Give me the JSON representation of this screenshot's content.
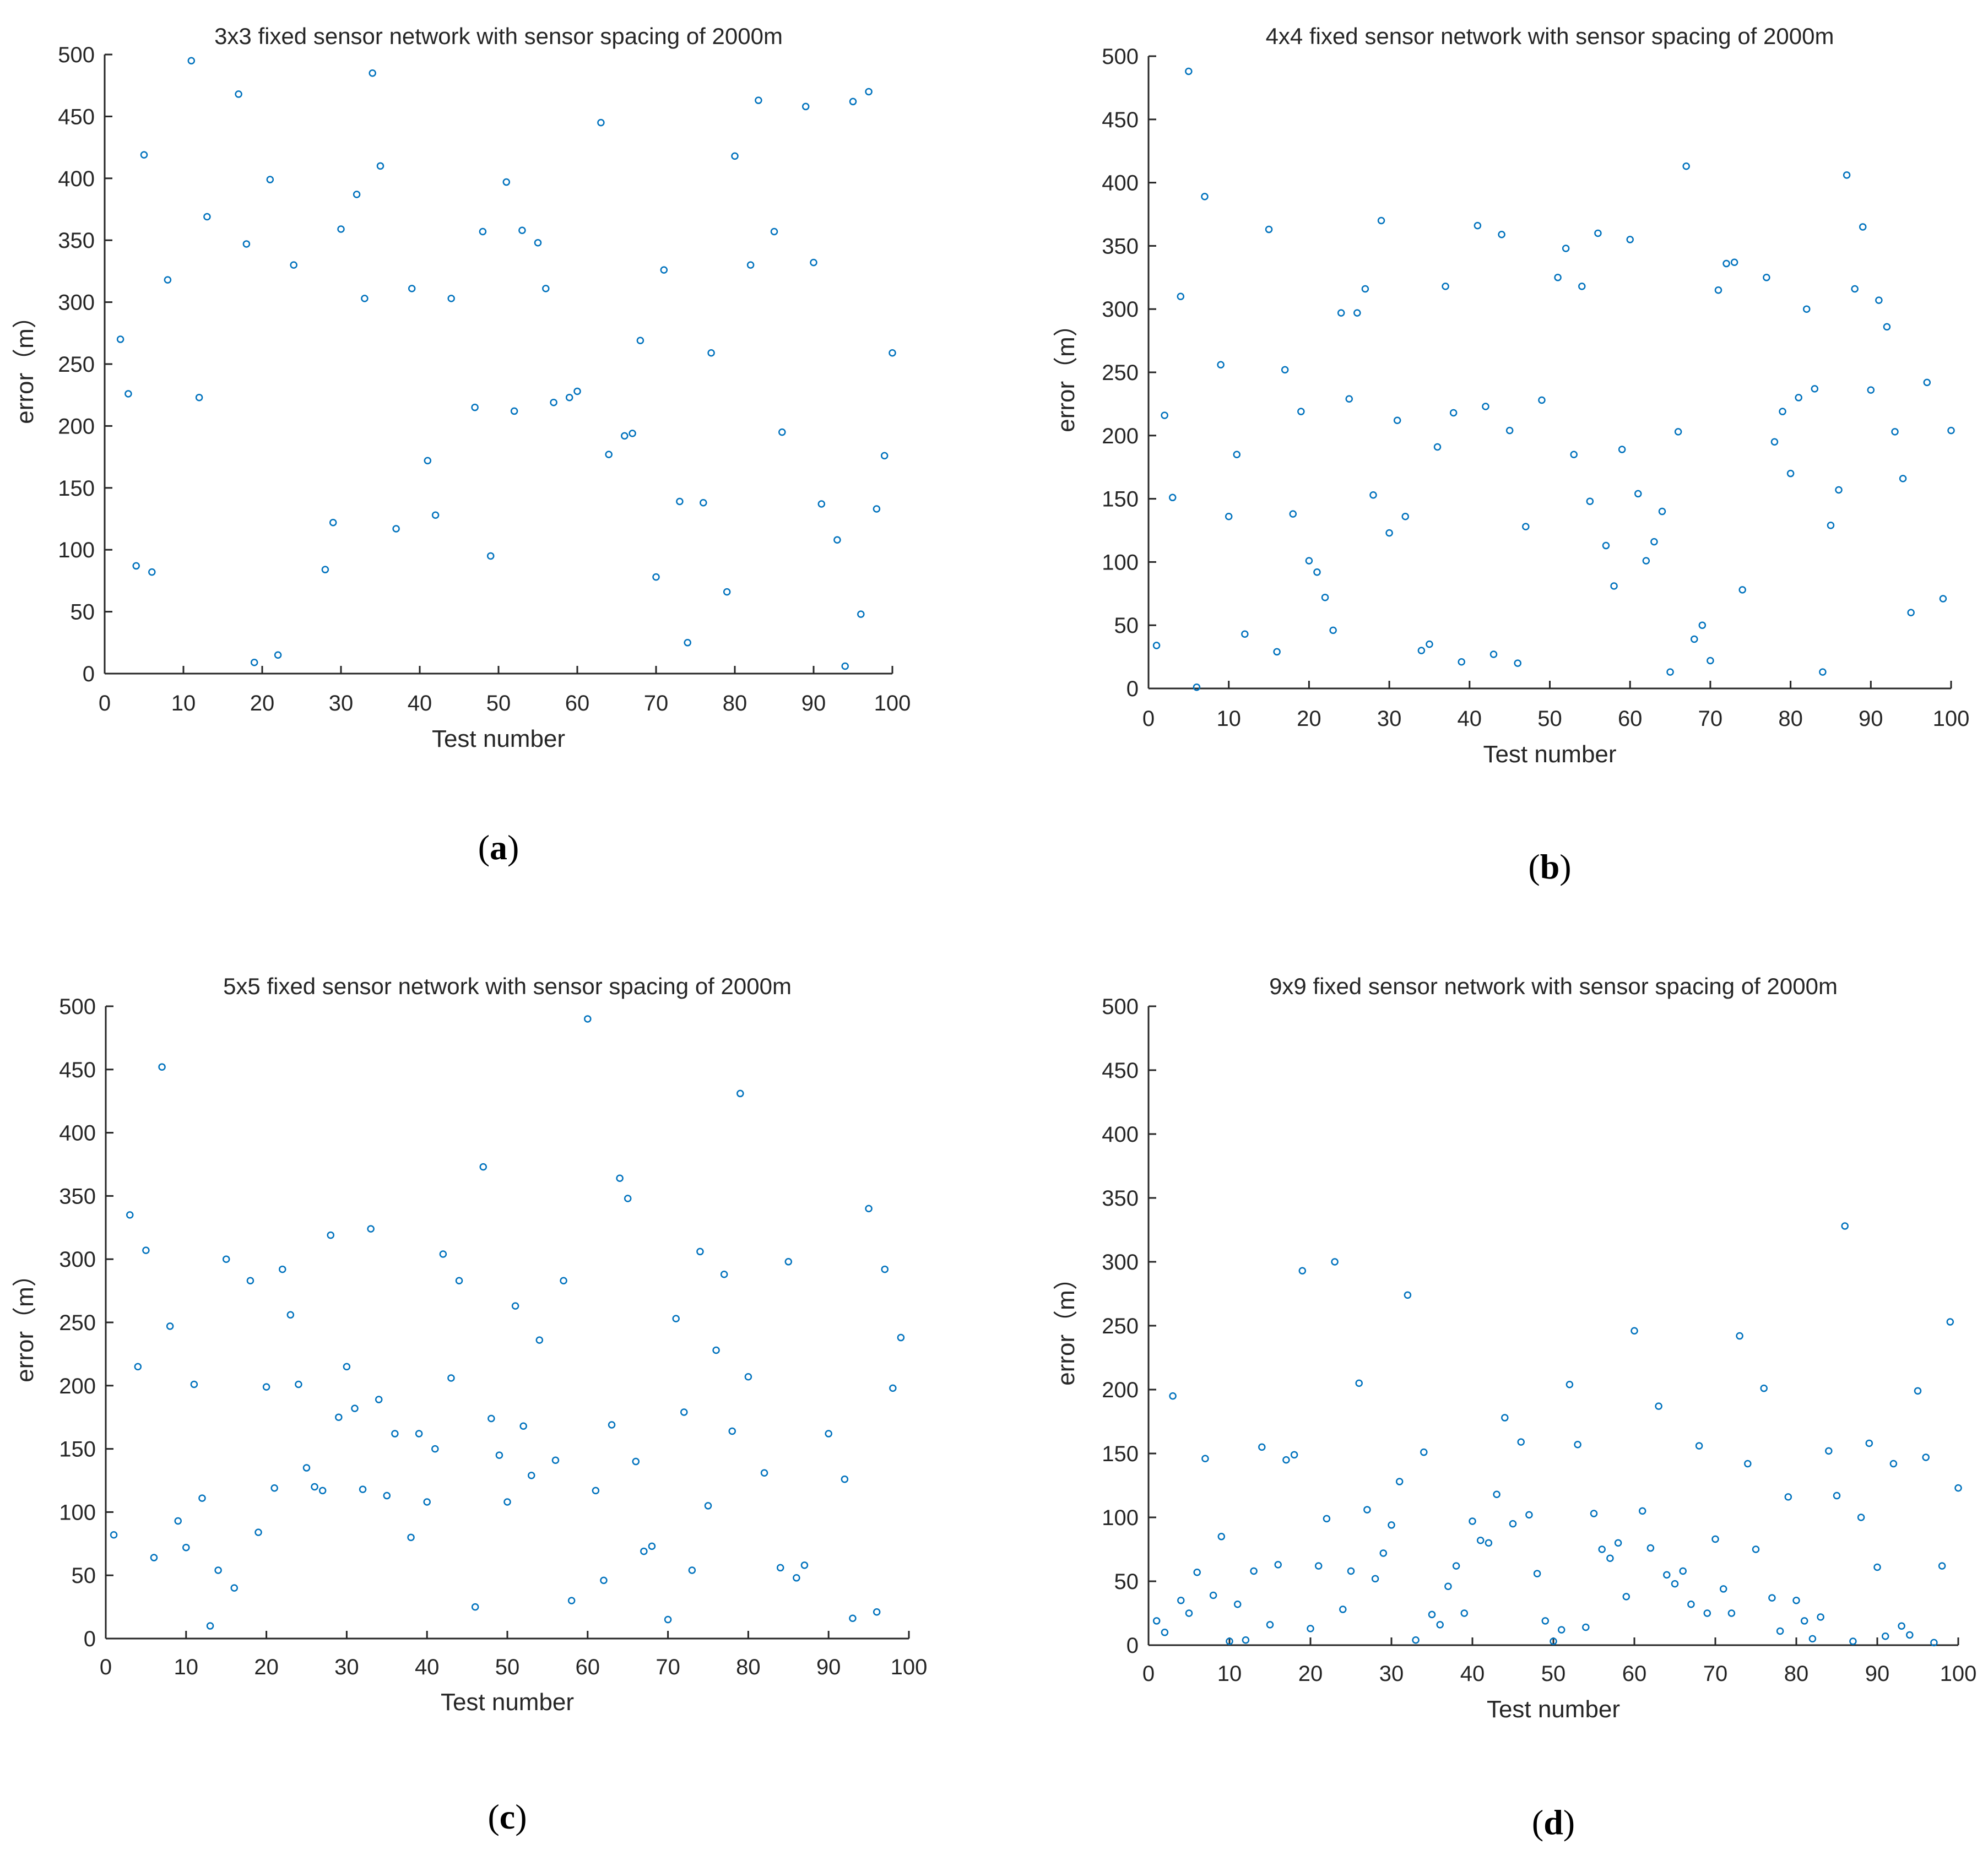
{
  "figure": {
    "point_color": "#0072bd"
  },
  "chart_data": [
    {
      "type": "scatter",
      "panel_label": "a",
      "title": "3x3 fixed sensor network with sensor spacing of 2000m",
      "xlabel": "Test number",
      "ylabel": "error（m）",
      "xlim": [
        0,
        100
      ],
      "ylim": [
        0,
        500
      ],
      "xticks": [
        0,
        10,
        20,
        30,
        40,
        50,
        60,
        70,
        80,
        90,
        100
      ],
      "yticks": [
        0,
        50,
        100,
        150,
        200,
        250,
        300,
        350,
        400,
        450,
        500
      ],
      "grid": false,
      "x": [
        2,
        3,
        4,
        5,
        6,
        8,
        11,
        12,
        13,
        17,
        18,
        19,
        21,
        22,
        24,
        28,
        29,
        30,
        32,
        33,
        34,
        35,
        37,
        39,
        41,
        42,
        44,
        47,
        48,
        49,
        51,
        52,
        53,
        55,
        56,
        57,
        59,
        60,
        63,
        64,
        66,
        67,
        68,
        70,
        71,
        73,
        74,
        76,
        77,
        79,
        80,
        82,
        83,
        85,
        86,
        89,
        90,
        91,
        93,
        94,
        95,
        96,
        97,
        98,
        99,
        100
      ],
      "y": [
        270,
        226,
        87,
        419,
        82,
        318,
        495,
        223,
        369,
        468,
        347,
        9,
        399,
        15,
        330,
        84,
        122,
        359,
        387,
        303,
        485,
        410,
        117,
        311,
        172,
        128,
        303,
        215,
        357,
        95,
        397,
        212,
        358,
        348,
        311,
        219,
        223,
        228,
        445,
        177,
        192,
        194,
        269,
        78,
        326,
        139,
        25,
        138,
        259,
        66,
        418,
        330,
        463,
        357,
        195,
        458,
        332,
        137,
        108,
        6,
        462,
        48,
        470,
        133,
        176,
        259
      ]
    },
    {
      "type": "scatter",
      "panel_label": "b",
      "title": "4x4 fixed sensor network with sensor spacing of 2000m",
      "xlabel": "Test number",
      "ylabel": "error（m）",
      "xlim": [
        0,
        100
      ],
      "ylim": [
        0,
        500
      ],
      "xticks": [
        0,
        10,
        20,
        30,
        40,
        50,
        60,
        70,
        80,
        90,
        100
      ],
      "yticks": [
        0,
        50,
        100,
        150,
        200,
        250,
        300,
        350,
        400,
        450,
        500
      ],
      "grid": false,
      "x": [
        1,
        2,
        3,
        4,
        5,
        6,
        7,
        9,
        10,
        11,
        12,
        15,
        16,
        17,
        18,
        19,
        20,
        21,
        22,
        23,
        24,
        25,
        26,
        27,
        28,
        29,
        30,
        31,
        32,
        34,
        35,
        36,
        37,
        38,
        39,
        41,
        42,
        43,
        44,
        45,
        46,
        47,
        49,
        51,
        52,
        53,
        54,
        55,
        56,
        57,
        58,
        59,
        60,
        61,
        62,
        63,
        64,
        65,
        66,
        67,
        68,
        69,
        70,
        71,
        72,
        73,
        74,
        77,
        78,
        79,
        80,
        81,
        82,
        83,
        84,
        85,
        86,
        87,
        88,
        89,
        90,
        91,
        92,
        93,
        94,
        95,
        97,
        99,
        100
      ],
      "y": [
        34,
        216,
        151,
        310,
        488,
        1,
        389,
        256,
        136,
        185,
        43,
        363,
        29,
        252,
        138,
        219,
        101,
        92,
        72,
        46,
        297,
        229,
        297,
        316,
        153,
        370,
        123,
        212,
        136,
        30,
        35,
        191,
        318,
        218,
        21,
        366,
        223,
        27,
        359,
        204,
        20,
        128,
        228,
        325,
        348,
        185,
        318,
        148,
        360,
        113,
        81,
        189,
        355,
        154,
        101,
        116,
        140,
        13,
        203,
        413,
        39,
        50,
        22,
        315,
        336,
        337,
        78,
        325,
        195,
        219,
        170,
        230,
        300,
        237,
        13,
        129,
        157,
        406,
        316,
        365,
        236,
        307,
        286,
        203,
        166,
        60,
        242,
        71,
        204
      ]
    },
    {
      "type": "scatter",
      "panel_label": "c",
      "title": "5x5 fixed sensor network with sensor spacing of 2000m",
      "xlabel": "Test number",
      "ylabel": "error（m）",
      "xlim": [
        0,
        100
      ],
      "ylim": [
        0,
        500
      ],
      "xticks": [
        0,
        10,
        20,
        30,
        40,
        50,
        60,
        70,
        80,
        90,
        100
      ],
      "yticks": [
        0,
        50,
        100,
        150,
        200,
        250,
        300,
        350,
        400,
        450,
        500
      ],
      "grid": false,
      "x": [
        1,
        3,
        4,
        5,
        6,
        7,
        8,
        9,
        10,
        11,
        12,
        13,
        14,
        15,
        16,
        18,
        19,
        20,
        21,
        22,
        23,
        24,
        25,
        26,
        27,
        28,
        29,
        30,
        31,
        32,
        33,
        34,
        35,
        36,
        38,
        39,
        40,
        41,
        42,
        43,
        44,
        46,
        47,
        48,
        49,
        50,
        51,
        52,
        53,
        54,
        56,
        57,
        58,
        60,
        61,
        62,
        63,
        64,
        65,
        66,
        67,
        68,
        70,
        71,
        72,
        73,
        74,
        75,
        76,
        77,
        78,
        79,
        80,
        82,
        84,
        85,
        86,
        87,
        90,
        92,
        93,
        95,
        96,
        97,
        98,
        99
      ],
      "y": [
        82,
        335,
        215,
        307,
        64,
        452,
        247,
        93,
        72,
        201,
        111,
        10,
        54,
        300,
        40,
        283,
        84,
        199,
        119,
        292,
        256,
        201,
        135,
        120,
        117,
        319,
        175,
        215,
        182,
        118,
        324,
        189,
        113,
        162,
        80,
        162,
        108,
        150,
        304,
        206,
        283,
        25,
        373,
        174,
        145,
        108,
        263,
        168,
        129,
        236,
        141,
        283,
        30,
        490,
        117,
        46,
        169,
        364,
        348,
        140,
        69,
        73,
        15,
        253,
        179,
        54,
        306,
        105,
        228,
        288,
        164,
        431,
        207,
        131,
        56,
        298,
        48,
        58,
        162,
        126,
        16,
        340,
        21,
        292,
        198,
        238
      ]
    },
    {
      "type": "scatter",
      "panel_label": "d",
      "title": "9x9 fixed sensor network with sensor spacing of 2000m",
      "xlabel": "Test number",
      "ylabel": "error（m）",
      "xlim": [
        0,
        100
      ],
      "ylim": [
        0,
        500
      ],
      "xticks": [
        0,
        10,
        20,
        30,
        40,
        50,
        60,
        70,
        80,
        90,
        100
      ],
      "yticks": [
        0,
        50,
        100,
        150,
        200,
        250,
        300,
        350,
        400,
        450,
        500
      ],
      "grid": false,
      "x": [
        1,
        2,
        3,
        4,
        5,
        6,
        7,
        8,
        9,
        10,
        11,
        12,
        13,
        14,
        15,
        16,
        17,
        18,
        19,
        20,
        21,
        22,
        23,
        24,
        25,
        26,
        27,
        28,
        29,
        30,
        31,
        32,
        33,
        34,
        35,
        36,
        37,
        38,
        39,
        40,
        41,
        42,
        43,
        44,
        45,
        46,
        47,
        48,
        49,
        50,
        51,
        52,
        53,
        54,
        55,
        56,
        57,
        58,
        59,
        60,
        61,
        62,
        63,
        64,
        65,
        66,
        67,
        68,
        69,
        70,
        71,
        72,
        73,
        74,
        75,
        76,
        77,
        78,
        79,
        80,
        81,
        82,
        83,
        84,
        85,
        86,
        87,
        88,
        89,
        90,
        91,
        92,
        93,
        94,
        95,
        96,
        97,
        98,
        99,
        100
      ],
      "y": [
        19,
        10,
        195,
        35,
        25,
        57,
        146,
        39,
        85,
        3,
        32,
        4,
        58,
        155,
        16,
        63,
        145,
        149,
        293,
        13,
        62,
        99,
        300,
        28,
        58,
        205,
        106,
        52,
        72,
        94,
        128,
        274,
        4,
        151,
        24,
        16,
        46,
        62,
        25,
        97,
        82,
        80,
        118,
        178,
        95,
        159,
        102,
        56,
        19,
        3,
        12,
        204,
        157,
        14,
        103,
        75,
        68,
        80,
        38,
        246,
        105,
        76,
        187,
        55,
        48,
        58,
        32,
        156,
        25,
        83,
        44,
        25,
        242,
        142,
        75,
        201,
        37,
        11,
        116,
        35,
        19,
        5,
        22,
        152,
        117,
        328,
        3,
        100,
        158,
        61,
        7,
        142,
        15,
        8,
        199,
        147,
        2,
        62,
        253,
        123
      ]
    }
  ]
}
